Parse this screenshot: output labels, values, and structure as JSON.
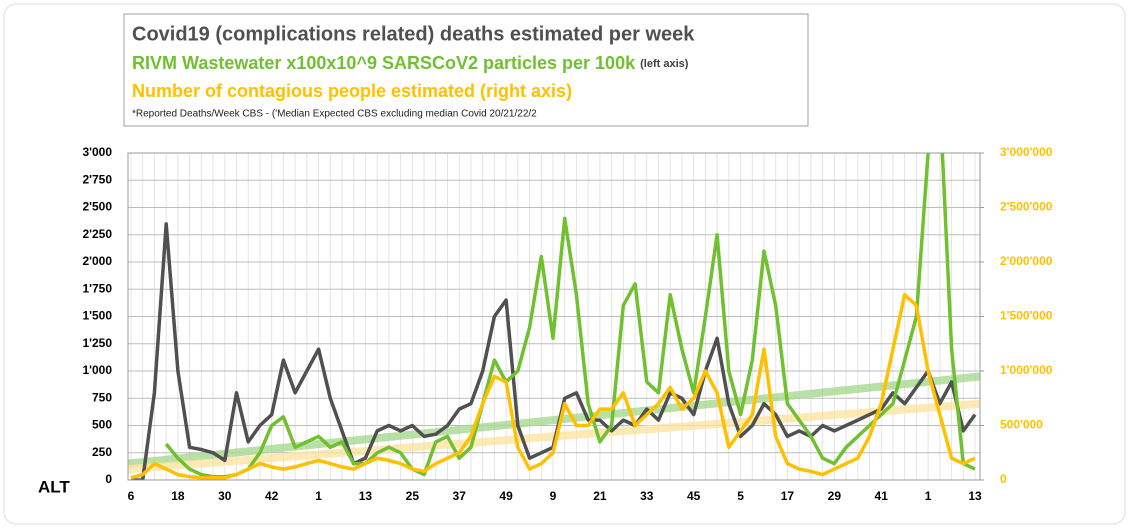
{
  "chart_data": {
    "type": "line",
    "title": "Covid19 (complications related) deaths estimated per week",
    "subtitle": "RIVM Wastewater x100x10^9 SARSCoV2 particles per 100k",
    "subtitle_note": "(left axis)",
    "subtitle2": "Number of contagious people estimated (right axis)",
    "footnote": "*Reported Deaths/Week CBS - ('Median Expected CBS excluding median Covid 20/21/22/2",
    "corner_label": "ALT",
    "categories": [
      "6",
      null,
      null,
      null,
      "18",
      null,
      null,
      null,
      "30",
      null,
      null,
      null,
      "42",
      null,
      null,
      null,
      "1",
      null,
      null,
      null,
      "13",
      null,
      null,
      null,
      "25",
      null,
      null,
      null,
      "37",
      null,
      null,
      null,
      "49",
      null,
      null,
      null,
      "9",
      null,
      null,
      null,
      "21",
      null,
      null,
      null,
      "33",
      null,
      null,
      null,
      "45",
      null,
      null,
      null,
      "5",
      null,
      null,
      null,
      "17",
      null,
      null,
      null,
      "29",
      null,
      null,
      null,
      "41",
      null,
      null,
      null,
      "1",
      null,
      null,
      null,
      "13"
    ],
    "ylim": [
      0,
      3000
    ],
    "yticks": [
      0,
      {
        "value": 250,
        "label": "250"
      },
      {
        "value": 500,
        "label": "500"
      },
      {
        "value": 750,
        "label": "750"
      },
      {
        "value": 1000,
        "label": "1'000"
      },
      {
        "value": 1250,
        "label": "1'250"
      },
      {
        "value": 1500,
        "label": "1'500"
      },
      {
        "value": 1750,
        "label": "1'750"
      },
      {
        "value": 2000,
        "label": "2'000"
      },
      {
        "value": 2250,
        "label": "2'250"
      },
      {
        "value": 2500,
        "label": "2'500"
      },
      {
        "value": 2750,
        "label": "2'750"
      },
      {
        "value": 3000,
        "label": "3'000"
      }
    ],
    "y2lim": [
      0,
      3000000
    ],
    "y2ticks": [
      0,
      {
        "value": 500000,
        "label": "500'000"
      },
      {
        "value": 1000000,
        "label": "1'000'000"
      },
      {
        "value": 1500000,
        "label": "1'500'000"
      },
      {
        "value": 2000000,
        "label": "2'000'000"
      },
      {
        "value": 2500000,
        "label": "2'500'000"
      },
      {
        "value": 3000000,
        "label": "3'000'000"
      }
    ],
    "y2_color": "#ffc000",
    "grid": true,
    "series": [
      {
        "color": "#505050",
        "values": [
          0,
          0,
          800,
          2350,
          1000,
          300,
          280,
          250,
          180,
          800,
          350,
          500,
          600,
          1100,
          800,
          1000,
          1200,
          750,
          450,
          150,
          200,
          450,
          500,
          450,
          500,
          400,
          420,
          500,
          650,
          700,
          1000,
          1500,
          1650,
          500,
          200,
          250,
          300,
          750,
          800,
          550,
          550,
          450,
          550,
          500,
          650,
          550,
          800,
          750,
          600,
          1000,
          1300,
          700,
          400,
          500,
          700,
          600,
          400,
          450,
          400,
          500,
          450,
          500,
          550,
          600,
          650,
          800,
          700,
          850,
          1000,
          700,
          900,
          450,
          600
        ]
      },
      {
        "color": "#70c030",
        "values": [
          null,
          null,
          null,
          330,
          200,
          100,
          50,
          30,
          30,
          50,
          100,
          250,
          500,
          580,
          300,
          350,
          400,
          300,
          350,
          150,
          150,
          250,
          300,
          250,
          100,
          50,
          350,
          400,
          200,
          300,
          700,
          1100,
          900,
          1000,
          1400,
          2050,
          1300,
          2400,
          1700,
          700,
          350,
          500,
          1600,
          1800,
          900,
          800,
          1700,
          1200,
          800,
          1500,
          2250,
          1000,
          600,
          1100,
          2100,
          1600,
          700,
          550,
          400,
          200,
          150,
          300,
          400,
          500,
          600,
          700,
          1100,
          1500,
          3000,
          3500,
          1200,
          150,
          100
        ]
      },
      {
        "color": "#ffc000",
        "axis": "y2",
        "values": [
          20000,
          50000,
          150000,
          100000,
          50000,
          30000,
          20000,
          20000,
          20000,
          50000,
          100000,
          150000,
          120000,
          100000,
          120000,
          150000,
          180000,
          150000,
          120000,
          100000,
          150000,
          200000,
          180000,
          150000,
          100000,
          80000,
          150000,
          200000,
          250000,
          400000,
          700000,
          950000,
          900000,
          300000,
          100000,
          150000,
          250000,
          700000,
          500000,
          500000,
          650000,
          650000,
          800000,
          500000,
          600000,
          700000,
          850000,
          650000,
          750000,
          1000000,
          800000,
          300000,
          450000,
          600000,
          1200000,
          400000,
          150000,
          100000,
          80000,
          50000,
          100000,
          150000,
          200000,
          400000,
          700000,
          1200000,
          1700000,
          1600000,
          1000000,
          600000,
          200000,
          150000,
          200000
        ]
      }
    ],
    "trendlines": [
      {
        "color": "#a8d890",
        "values": [
          150,
          950
        ]
      },
      {
        "color": "#fde3a0",
        "axis": "y2",
        "values": [
          100000,
          700000
        ]
      }
    ]
  }
}
